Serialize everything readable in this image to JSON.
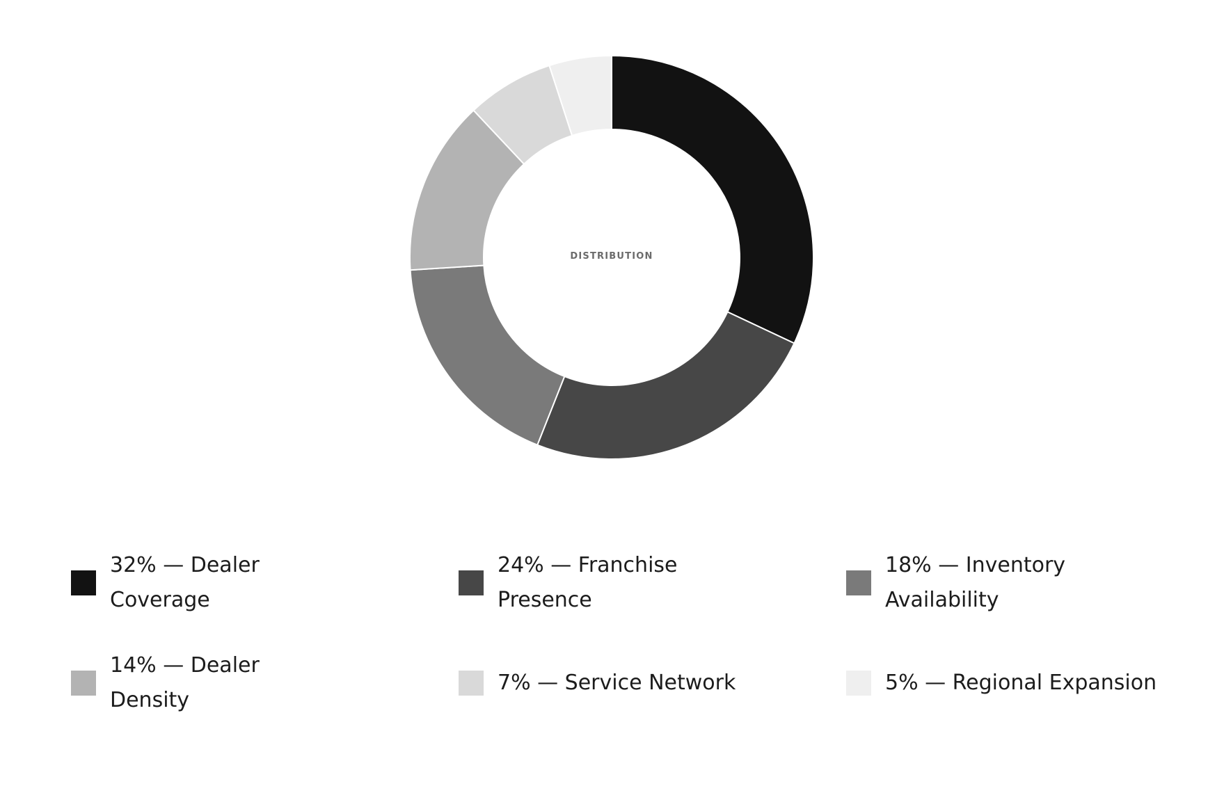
{
  "chart_data": {
    "type": "pie",
    "variant": "donut",
    "center_label": "DISTRIBUTION",
    "slices": [
      {
        "label": "Dealer Coverage",
        "value": 32,
        "color": "#121212"
      },
      {
        "label": "Franchise Presence",
        "value": 24,
        "color": "#474747"
      },
      {
        "label": "Inventory Availability",
        "value": 18,
        "color": "#7a7a7a"
      },
      {
        "label": "Dealer Density",
        "value": 14,
        "color": "#b3b3b3"
      },
      {
        "label": "Service Network",
        "value": 7,
        "color": "#d9d9d9"
      },
      {
        "label": "Regional Expansion",
        "value": 5,
        "color": "#efefef"
      }
    ],
    "legend_placement": "bottom",
    "legend": [
      "32% — Dealer Coverage",
      "24% — Franchise Presence",
      "18% — Inventory Availability",
      "14% — Dealer Density",
      "7% — Service Network",
      "5% — Regional Expansion"
    ]
  }
}
